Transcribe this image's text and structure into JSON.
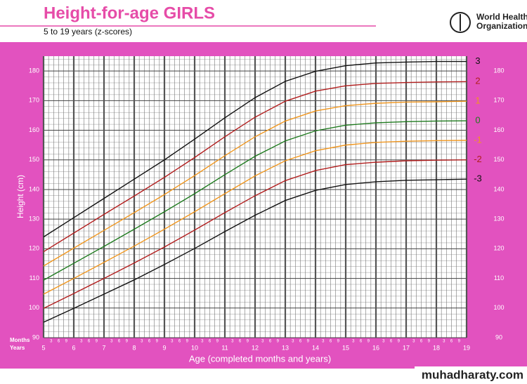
{
  "chart_data": {
    "type": "line",
    "title": "Height-for-age  GIRLS",
    "subtitle": "5 to 19 years (z-scores)",
    "logo": [
      "World Health",
      "Organization"
    ],
    "ylabel": "Height (cm)",
    "xlabel": "Age (completed months and years)",
    "months_label": "Months",
    "years_label": "Years",
    "month_labels": [
      3,
      6,
      9
    ],
    "x": [
      5,
      6,
      7,
      8,
      9,
      10,
      11,
      12,
      13,
      14,
      15,
      16,
      17,
      18,
      19
    ],
    "xlim": [
      5,
      19
    ],
    "xticks": [
      5,
      6,
      7,
      8,
      9,
      10,
      11,
      12,
      13,
      14,
      15,
      16,
      17,
      18,
      19
    ],
    "ylim": [
      90,
      185
    ],
    "yticks": [
      90,
      100,
      110,
      120,
      130,
      140,
      150,
      160,
      170,
      180
    ],
    "grid": true,
    "series": [
      {
        "name": "3",
        "color": "#111111",
        "values": [
          124.0,
          130.5,
          137.0,
          143.5,
          150.0,
          157.0,
          164.2,
          171.0,
          176.5,
          179.9,
          181.8,
          182.7,
          183.0,
          183.2,
          183.2
        ]
      },
      {
        "name": "2",
        "color": "#b21e1e",
        "values": [
          119.0,
          125.3,
          131.6,
          137.8,
          144.1,
          150.8,
          157.8,
          164.4,
          169.8,
          173.2,
          175.0,
          175.8,
          176.1,
          176.3,
          176.4
        ]
      },
      {
        "name": "1",
        "color": "#f0961e",
        "values": [
          114.2,
          120.2,
          126.2,
          132.2,
          138.3,
          144.7,
          151.4,
          157.8,
          163.1,
          166.5,
          168.3,
          169.1,
          169.5,
          169.6,
          169.8
        ]
      },
      {
        "name": "0",
        "color": "#1e7a1e",
        "values": [
          109.4,
          115.1,
          120.8,
          126.6,
          132.5,
          138.6,
          145.0,
          151.2,
          156.4,
          159.8,
          161.7,
          162.5,
          162.9,
          163.1,
          163.2
        ]
      },
      {
        "name": "-1",
        "color": "#f0961e",
        "values": [
          104.7,
          110.0,
          115.4,
          120.9,
          126.6,
          132.5,
          138.6,
          144.6,
          149.7,
          153.1,
          155.0,
          155.9,
          156.3,
          156.5,
          156.6
        ]
      },
      {
        "name": "-2",
        "color": "#b21e1e",
        "values": [
          99.9,
          104.9,
          110.0,
          115.2,
          120.6,
          126.3,
          132.2,
          137.9,
          143.0,
          146.4,
          148.4,
          149.2,
          149.7,
          149.9,
          150.0
        ]
      },
      {
        "name": "-3",
        "color": "#111111",
        "values": [
          95.2,
          99.9,
          104.7,
          109.5,
          114.7,
          120.1,
          125.8,
          131.3,
          136.3,
          139.7,
          141.7,
          142.6,
          143.1,
          143.3,
          143.5
        ]
      }
    ]
  },
  "watermark": "muhadharaty.com"
}
